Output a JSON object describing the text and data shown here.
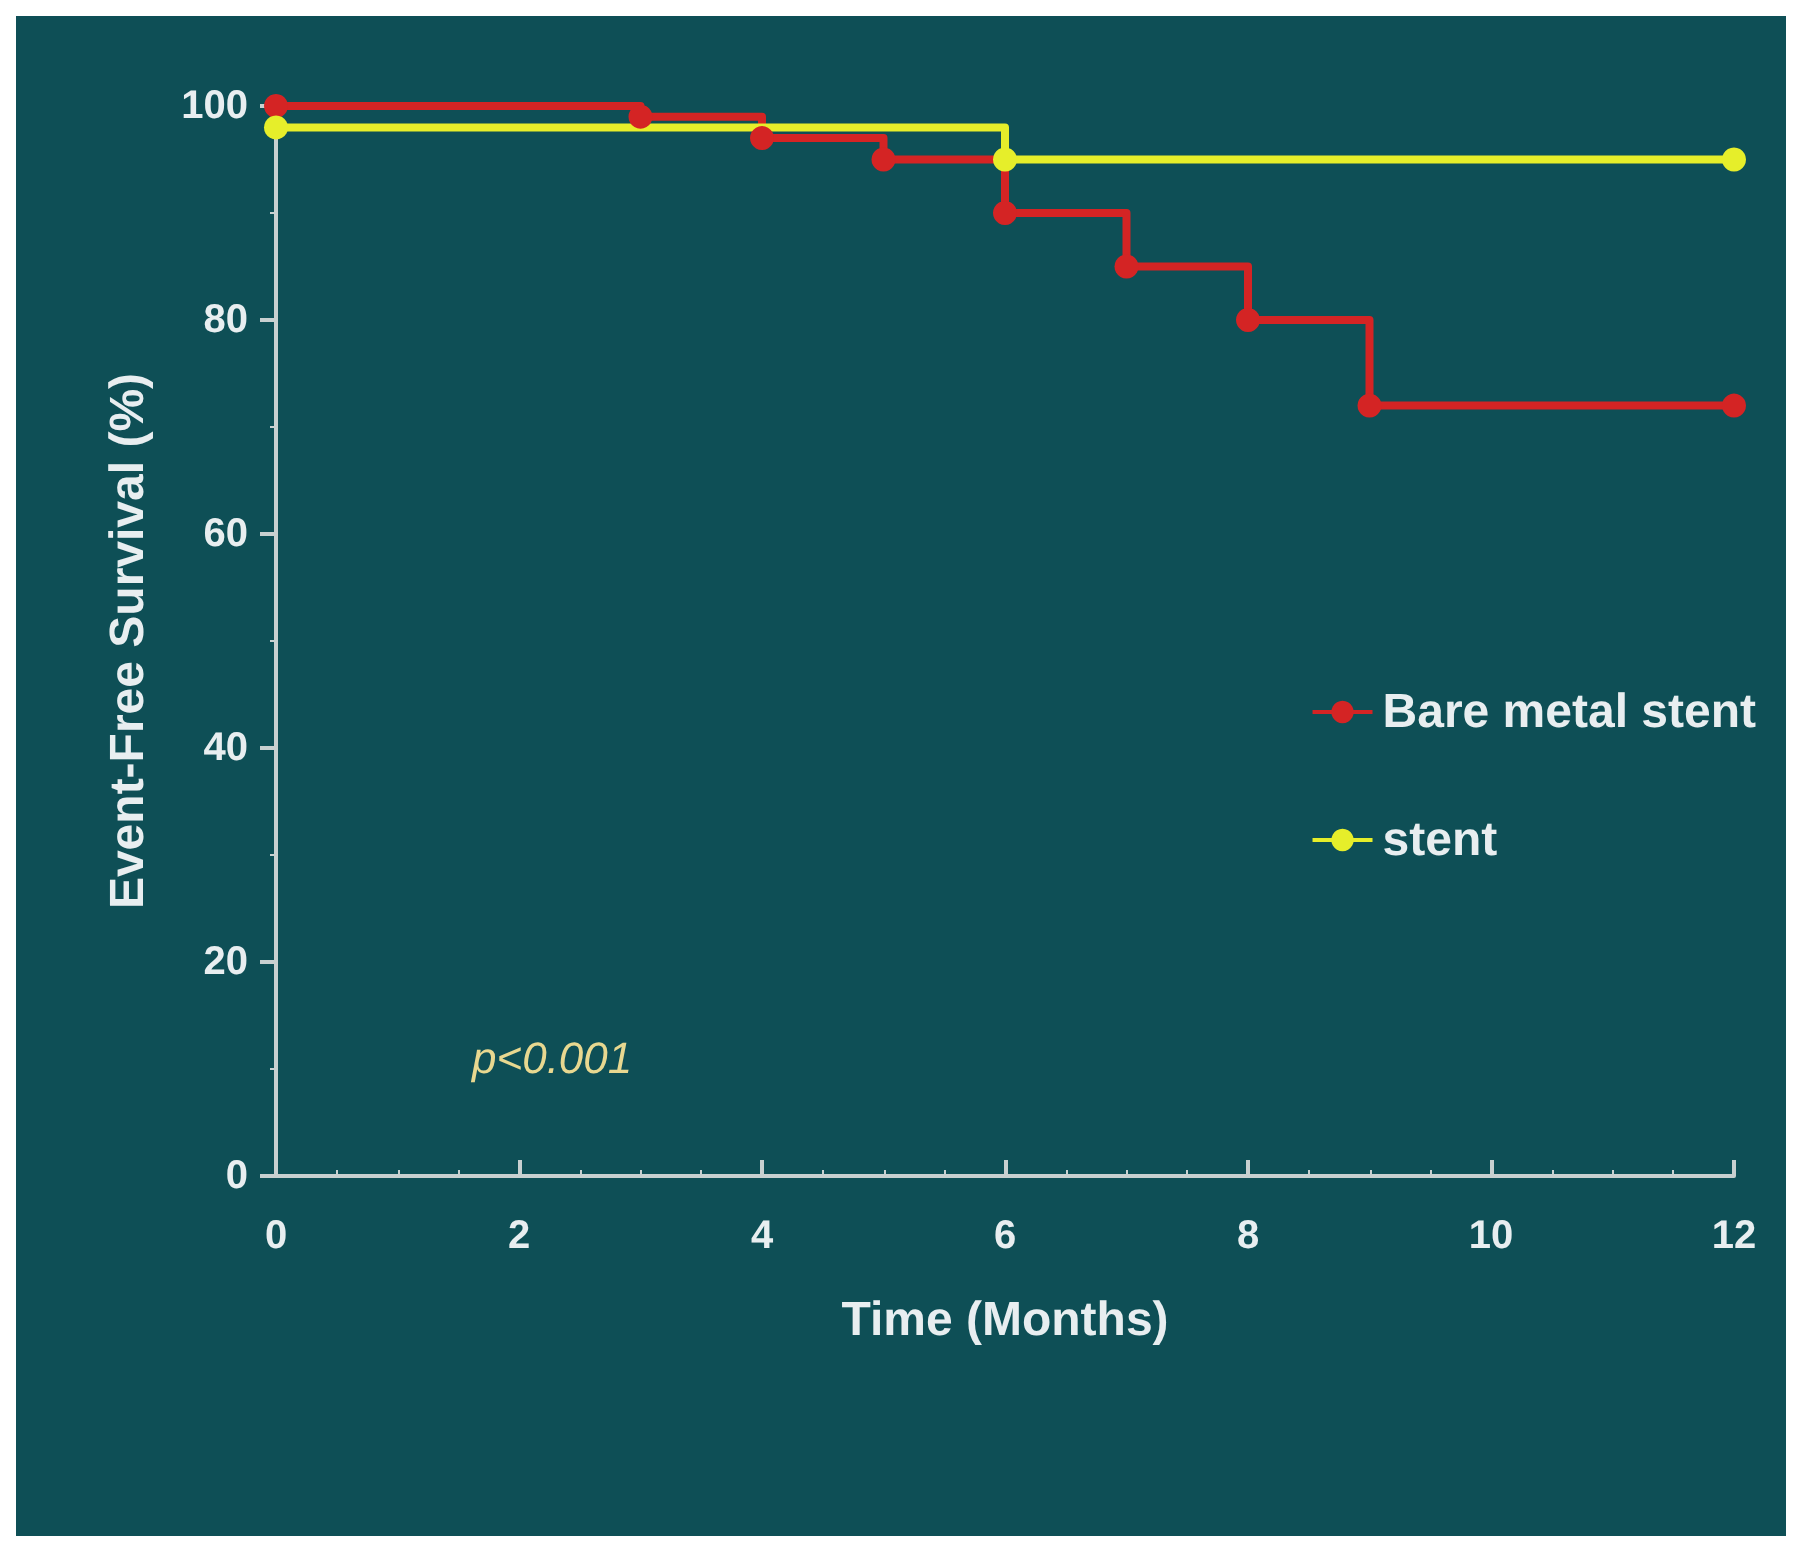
{
  "chart_data": {
    "type": "step",
    "xlabel": "Time (Months)",
    "ylabel": "Event-Free Survival (%)",
    "xlim": [
      0,
      12
    ],
    "xticks": [
      0,
      2,
      4,
      6,
      8,
      10,
      12
    ],
    "ylim": [
      0,
      100
    ],
    "yticks": [
      0,
      20,
      40,
      60,
      80,
      100
    ],
    "grid": false,
    "legend": "right",
    "marker": "circle",
    "annotations": [
      "p<0.001"
    ],
    "series": [
      {
        "name": "Bare metal stent",
        "color": "#d42424",
        "x": [
          0,
          3,
          4,
          5,
          6,
          7,
          8,
          9,
          12
        ],
        "values": [
          100,
          99,
          97,
          95,
          90,
          85,
          80,
          72,
          72
        ]
      },
      {
        "name": "stent",
        "color": "#e6ee2a",
        "x": [
          0,
          6,
          12
        ],
        "values": [
          98,
          95,
          95
        ]
      }
    ]
  }
}
